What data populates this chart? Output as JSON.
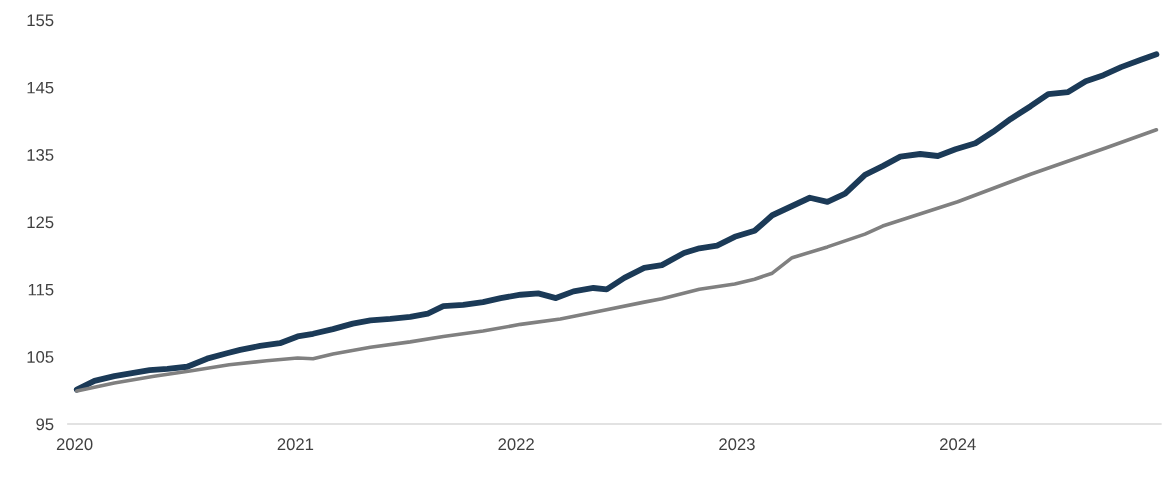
{
  "chart_data": {
    "type": "line",
    "xlim": [
      2019.97,
      2024.92
    ],
    "xticks": [
      2020,
      2021,
      2022,
      2023,
      2024
    ],
    "ylim": [
      95,
      155
    ],
    "yticks": [
      95,
      105,
      115,
      125,
      135,
      145,
      155
    ],
    "grid": false,
    "marker": "none",
    "line_style": "solid",
    "series": [
      {
        "color": "#1b3a57",
        "x": [
          2020.01,
          2020.09,
          2020.18,
          2020.34,
          2020.42,
          2020.51,
          2020.6,
          2020.69,
          2020.75,
          2020.84,
          2020.93,
          2021.01,
          2021.08,
          2021.17,
          2021.26,
          2021.34,
          2021.43,
          2021.52,
          2021.6,
          2021.67,
          2021.76,
          2021.85,
          2021.93,
          2022.02,
          2022.1,
          2022.18,
          2022.26,
          2022.35,
          2022.41,
          2022.49,
          2022.58,
          2022.66,
          2022.76,
          2022.83,
          2022.91,
          2022.99,
          2023.08,
          2023.16,
          2023.33,
          2023.41,
          2023.49,
          2023.58,
          2023.66,
          2023.74,
          2023.83,
          2023.91,
          2023.99,
          2024.08,
          2024.16,
          2024.24,
          2024.33,
          2024.41,
          2024.5,
          2024.58,
          2024.66,
          2024.74,
          2024.83,
          2024.9
        ],
        "values": [
          100.1,
          101.4,
          102.1,
          103.0,
          103.2,
          103.5,
          104.7,
          105.5,
          106.0,
          106.6,
          107.0,
          108.0,
          108.4,
          109.1,
          109.9,
          110.4,
          110.6,
          110.9,
          111.4,
          112.5,
          112.7,
          113.1,
          113.7,
          114.2,
          114.4,
          113.7,
          114.7,
          115.2,
          115.0,
          116.7,
          118.2,
          118.6,
          120.4,
          121.1,
          121.5,
          122.8,
          123.7,
          126.0,
          128.6,
          128.0,
          129.2,
          132.0,
          133.3,
          134.7,
          135.1,
          134.8,
          135.8,
          136.7,
          138.4,
          140.3,
          142.2,
          144.0,
          144.3,
          145.9,
          146.8,
          148.0,
          149.1,
          149.9
        ]
      },
      {
        "color": "#808080",
        "x": [
          2020.01,
          2020.18,
          2020.36,
          2020.53,
          2020.7,
          2020.87,
          2021.01,
          2021.08,
          2021.17,
          2021.34,
          2021.52,
          2021.67,
          2021.85,
          2022.02,
          2022.2,
          2022.37,
          2022.58,
          2022.66,
          2022.83,
          2022.99,
          2023.08,
          2023.16,
          2023.25,
          2023.41,
          2023.58,
          2023.66,
          2024.0,
          2024.33,
          2024.67,
          2024.9
        ],
        "values": [
          99.9,
          101.1,
          102.1,
          102.9,
          103.8,
          104.4,
          104.8,
          104.7,
          105.4,
          106.4,
          107.2,
          108.0,
          108.8,
          109.8,
          110.6,
          111.7,
          113.1,
          113.6,
          115.0,
          115.8,
          116.5,
          117.4,
          119.7,
          121.3,
          123.2,
          124.4,
          128.0,
          132.1,
          136.0,
          138.7
        ]
      }
    ]
  }
}
